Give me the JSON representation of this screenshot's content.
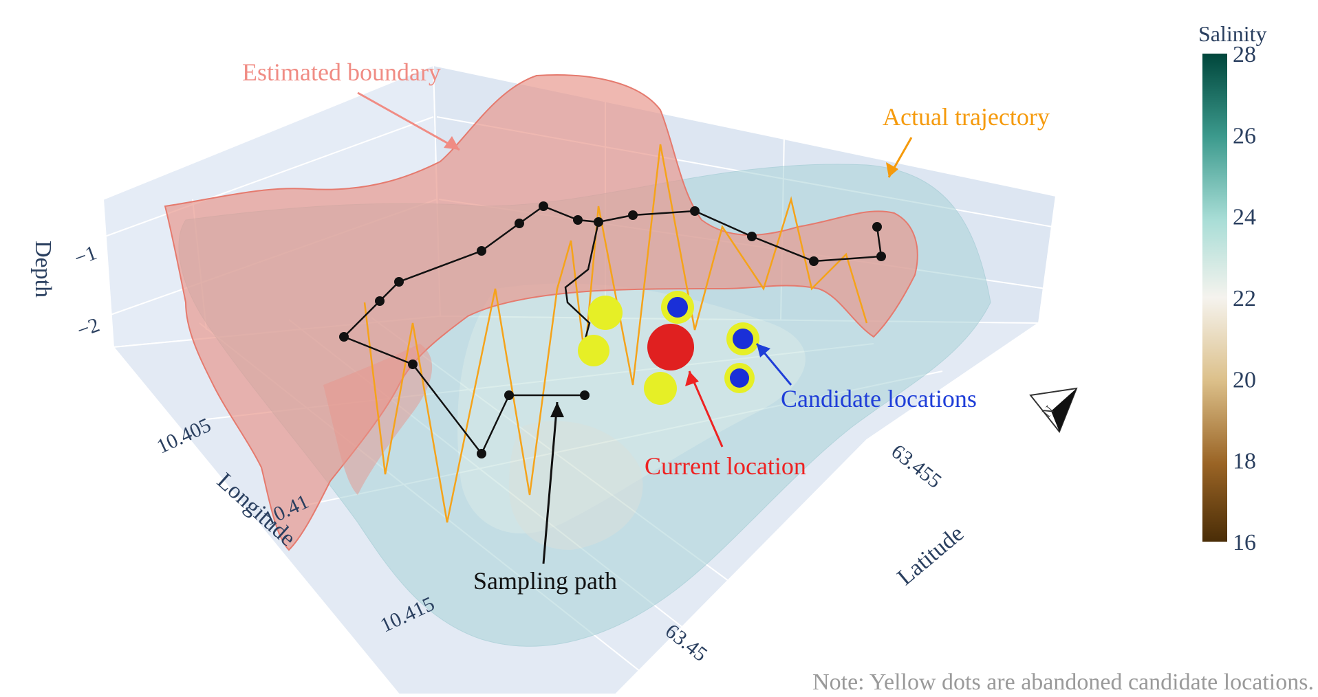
{
  "chart_data": {
    "type": "scatter3d",
    "axes": {
      "x": {
        "title": "Longitude",
        "ticks": [
          "10.405",
          "10.41",
          "10.415"
        ]
      },
      "y": {
        "title": "Latitude",
        "ticks": [
          "63.45",
          "63.455"
        ]
      },
      "z": {
        "title": "Depth",
        "ticks": [
          "−1",
          "−2"
        ]
      }
    },
    "colorbar": {
      "title": "Salinity",
      "range": [
        16,
        28
      ],
      "ticks": [
        "16",
        "18",
        "20",
        "22",
        "24",
        "26",
        "28"
      ],
      "colors": [
        "#4a2d07",
        "#9a6425",
        "#dcc08a",
        "#f5f3ee",
        "#a8ddd6",
        "#3c9a8d",
        "#00463b"
      ]
    },
    "annotations": {
      "estimated_boundary": {
        "text": "Estimated boundary",
        "color": "#f08c84"
      },
      "actual_trajectory": {
        "text": "Actual trajectory",
        "color": "#f59a0c"
      },
      "candidate_locations": {
        "text": "Candidate locations",
        "color": "#1f3ed8"
      },
      "current_location": {
        "text": "Current location",
        "color": "#ee2222"
      },
      "sampling_path": {
        "text": "Sampling path",
        "color": "#111111"
      }
    },
    "colors": {
      "boundary_surface": "#e8968c",
      "water_surface": "#a9d3d8",
      "trajectory": "#f5a31a",
      "sampling_path": "#111111",
      "current_location": "#e02020",
      "candidate": "#1a2fd8",
      "abandoned_candidate": "#e6ef26",
      "background": "#e5ecf6"
    },
    "note": "Note: Yellow dots are abandoned candidate locations."
  }
}
